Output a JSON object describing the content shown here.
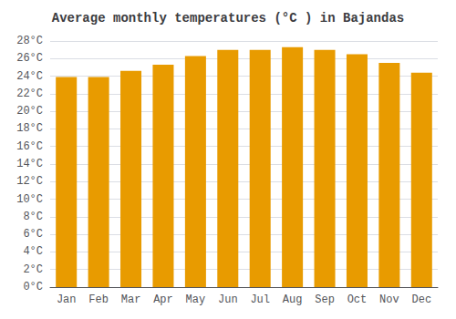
{
  "chart_data": {
    "type": "bar",
    "title": "Average monthly temperatures (°C ) in Bajandas",
    "categories": [
      "Jan",
      "Feb",
      "Mar",
      "Apr",
      "May",
      "Jun",
      "Jul",
      "Aug",
      "Sep",
      "Oct",
      "Nov",
      "Dec"
    ],
    "values": [
      23.9,
      23.9,
      24.6,
      25.3,
      26.3,
      27.0,
      27.0,
      27.3,
      27.0,
      26.5,
      25.5,
      24.4
    ],
    "color": "#E89B00",
    "ylim": [
      0,
      28
    ],
    "yticks": [
      {
        "value": 0,
        "label": "0°C"
      },
      {
        "value": 2,
        "label": "2°C"
      },
      {
        "value": 4,
        "label": "4°C"
      },
      {
        "value": 6,
        "label": "6°C"
      },
      {
        "value": 8,
        "label": "8°C"
      },
      {
        "value": 10,
        "label": "10°C"
      },
      {
        "value": 12,
        "label": "12°C"
      },
      {
        "value": 14,
        "label": "14°C"
      },
      {
        "value": 16,
        "label": "16°C"
      },
      {
        "value": 18,
        "label": "18°C"
      },
      {
        "value": 20,
        "label": "20°C"
      },
      {
        "value": 22,
        "label": "22°C"
      },
      {
        "value": 24,
        "label": "24°C"
      },
      {
        "value": 26,
        "label": "26°C"
      },
      {
        "value": 28,
        "label": "28°C"
      }
    ],
    "grid": true
  }
}
